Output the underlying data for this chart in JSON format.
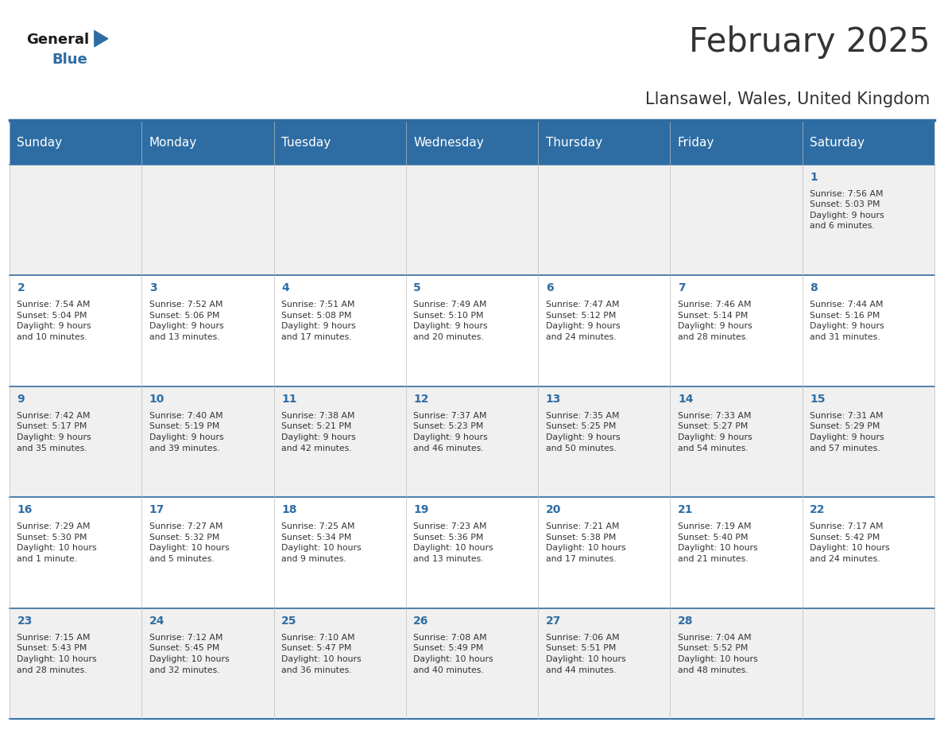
{
  "title": "February 2025",
  "subtitle": "Llansawel, Wales, United Kingdom",
  "days_of_week": [
    "Sunday",
    "Monday",
    "Tuesday",
    "Wednesday",
    "Thursday",
    "Friday",
    "Saturday"
  ],
  "header_bg": "#2E6DA4",
  "header_text": "#FFFFFF",
  "cell_bg_light": "#F0F0F0",
  "cell_bg_white": "#FFFFFF",
  "text_color": "#333333",
  "day_num_color": "#2E6DA4",
  "border_color": "#2E6DA4",
  "logo_general_color": "#1a1a1a",
  "logo_blue_color": "#2E6DA4",
  "calendar_data": [
    [
      {
        "day": null,
        "info": null
      },
      {
        "day": null,
        "info": null
      },
      {
        "day": null,
        "info": null
      },
      {
        "day": null,
        "info": null
      },
      {
        "day": null,
        "info": null
      },
      {
        "day": null,
        "info": null
      },
      {
        "day": 1,
        "info": "Sunrise: 7:56 AM\nSunset: 5:03 PM\nDaylight: 9 hours\nand 6 minutes."
      }
    ],
    [
      {
        "day": 2,
        "info": "Sunrise: 7:54 AM\nSunset: 5:04 PM\nDaylight: 9 hours\nand 10 minutes."
      },
      {
        "day": 3,
        "info": "Sunrise: 7:52 AM\nSunset: 5:06 PM\nDaylight: 9 hours\nand 13 minutes."
      },
      {
        "day": 4,
        "info": "Sunrise: 7:51 AM\nSunset: 5:08 PM\nDaylight: 9 hours\nand 17 minutes."
      },
      {
        "day": 5,
        "info": "Sunrise: 7:49 AM\nSunset: 5:10 PM\nDaylight: 9 hours\nand 20 minutes."
      },
      {
        "day": 6,
        "info": "Sunrise: 7:47 AM\nSunset: 5:12 PM\nDaylight: 9 hours\nand 24 minutes."
      },
      {
        "day": 7,
        "info": "Sunrise: 7:46 AM\nSunset: 5:14 PM\nDaylight: 9 hours\nand 28 minutes."
      },
      {
        "day": 8,
        "info": "Sunrise: 7:44 AM\nSunset: 5:16 PM\nDaylight: 9 hours\nand 31 minutes."
      }
    ],
    [
      {
        "day": 9,
        "info": "Sunrise: 7:42 AM\nSunset: 5:17 PM\nDaylight: 9 hours\nand 35 minutes."
      },
      {
        "day": 10,
        "info": "Sunrise: 7:40 AM\nSunset: 5:19 PM\nDaylight: 9 hours\nand 39 minutes."
      },
      {
        "day": 11,
        "info": "Sunrise: 7:38 AM\nSunset: 5:21 PM\nDaylight: 9 hours\nand 42 minutes."
      },
      {
        "day": 12,
        "info": "Sunrise: 7:37 AM\nSunset: 5:23 PM\nDaylight: 9 hours\nand 46 minutes."
      },
      {
        "day": 13,
        "info": "Sunrise: 7:35 AM\nSunset: 5:25 PM\nDaylight: 9 hours\nand 50 minutes."
      },
      {
        "day": 14,
        "info": "Sunrise: 7:33 AM\nSunset: 5:27 PM\nDaylight: 9 hours\nand 54 minutes."
      },
      {
        "day": 15,
        "info": "Sunrise: 7:31 AM\nSunset: 5:29 PM\nDaylight: 9 hours\nand 57 minutes."
      }
    ],
    [
      {
        "day": 16,
        "info": "Sunrise: 7:29 AM\nSunset: 5:30 PM\nDaylight: 10 hours\nand 1 minute."
      },
      {
        "day": 17,
        "info": "Sunrise: 7:27 AM\nSunset: 5:32 PM\nDaylight: 10 hours\nand 5 minutes."
      },
      {
        "day": 18,
        "info": "Sunrise: 7:25 AM\nSunset: 5:34 PM\nDaylight: 10 hours\nand 9 minutes."
      },
      {
        "day": 19,
        "info": "Sunrise: 7:23 AM\nSunset: 5:36 PM\nDaylight: 10 hours\nand 13 minutes."
      },
      {
        "day": 20,
        "info": "Sunrise: 7:21 AM\nSunset: 5:38 PM\nDaylight: 10 hours\nand 17 minutes."
      },
      {
        "day": 21,
        "info": "Sunrise: 7:19 AM\nSunset: 5:40 PM\nDaylight: 10 hours\nand 21 minutes."
      },
      {
        "day": 22,
        "info": "Sunrise: 7:17 AM\nSunset: 5:42 PM\nDaylight: 10 hours\nand 24 minutes."
      }
    ],
    [
      {
        "day": 23,
        "info": "Sunrise: 7:15 AM\nSunset: 5:43 PM\nDaylight: 10 hours\nand 28 minutes."
      },
      {
        "day": 24,
        "info": "Sunrise: 7:12 AM\nSunset: 5:45 PM\nDaylight: 10 hours\nand 32 minutes."
      },
      {
        "day": 25,
        "info": "Sunrise: 7:10 AM\nSunset: 5:47 PM\nDaylight: 10 hours\nand 36 minutes."
      },
      {
        "day": 26,
        "info": "Sunrise: 7:08 AM\nSunset: 5:49 PM\nDaylight: 10 hours\nand 40 minutes."
      },
      {
        "day": 27,
        "info": "Sunrise: 7:06 AM\nSunset: 5:51 PM\nDaylight: 10 hours\nand 44 minutes."
      },
      {
        "day": 28,
        "info": "Sunrise: 7:04 AM\nSunset: 5:52 PM\nDaylight: 10 hours\nand 48 minutes."
      },
      {
        "day": null,
        "info": null
      }
    ]
  ]
}
